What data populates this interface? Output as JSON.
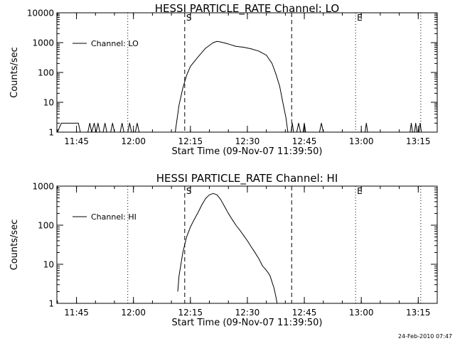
{
  "footer_date": "24-Feb-2010 07:47",
  "chart_data": [
    {
      "type": "line",
      "title": "HESSI PARTICLE_RATE Channel: LO",
      "xlabel": "Start Time (09-Nov-07 11:39:50)",
      "ylabel": "Counts/sec",
      "yscale": "log",
      "xlim": [
        "11:39:50",
        "13:20:00"
      ],
      "ylim": [
        1,
        10000
      ],
      "xticks": [
        "11:45",
        "12:00",
        "12:15",
        "12:30",
        "12:45",
        "13:00",
        "13:15"
      ],
      "yticks": [
        {
          "value": 1,
          "label": "1"
        },
        {
          "value": 10,
          "label": "10"
        },
        {
          "value": 100,
          "label": "100"
        },
        {
          "value": 1000,
          "label": "1000"
        },
        {
          "value": 10000,
          "label": "10000"
        }
      ],
      "legend": {
        "position": "top-left",
        "label": "Channel: LO"
      },
      "markers": [
        {
          "time": "11:58:30",
          "style": "dotted",
          "label": ""
        },
        {
          "time": "12:13:30",
          "style": "dashed",
          "label": "S"
        },
        {
          "time": "12:41:40",
          "style": "dashed",
          "label": ""
        },
        {
          "time": "12:58:30",
          "style": "dotted",
          "label": "E"
        },
        {
          "time": "13:15:40",
          "style": "dotted",
          "label": ""
        }
      ],
      "series": [
        {
          "values": [
            [
              "11:40:00",
              1
            ],
            [
              "11:41:00",
              2
            ],
            [
              "11:43:00",
              2
            ],
            [
              "11:45:30",
              2
            ],
            [
              "11:46:00",
              1
            ],
            [
              "11:48:00",
              1
            ],
            [
              "11:48:30",
              2
            ],
            [
              "11:49:00",
              1
            ],
            [
              "11:49:40",
              2
            ],
            [
              "11:50:10",
              1
            ],
            [
              "11:50:40",
              2
            ],
            [
              "11:51:10",
              1
            ],
            [
              "11:52:00",
              1
            ],
            [
              "11:52:30",
              2
            ],
            [
              "11:53:00",
              1
            ],
            [
              "11:54:00",
              1
            ],
            [
              "11:54:30",
              2
            ],
            [
              "11:55:00",
              1
            ],
            [
              "11:56:30",
              1
            ],
            [
              "11:57:00",
              2
            ],
            [
              "11:57:30",
              1
            ],
            [
              "11:58:30",
              1
            ],
            [
              "11:59:00",
              2
            ],
            [
              "11:59:30",
              1
            ],
            [
              "12:00:30",
              1
            ],
            [
              "12:01:00",
              2
            ],
            [
              "12:01:30",
              1
            ],
            [
              "12:11:00",
              1
            ],
            [
              "12:12:00",
              8
            ],
            [
              "12:13:00",
              30
            ],
            [
              "12:14:00",
              80
            ],
            [
              "12:15:00",
              160
            ],
            [
              "12:17:00",
              330
            ],
            [
              "12:19:00",
              650
            ],
            [
              "12:21:00",
              1000
            ],
            [
              "12:22:00",
              1100
            ],
            [
              "12:23:00",
              1050
            ],
            [
              "12:25:00",
              900
            ],
            [
              "12:27:00",
              750
            ],
            [
              "12:29:00",
              700
            ],
            [
              "12:31:00",
              620
            ],
            [
              "12:33:00",
              520
            ],
            [
              "12:35:00",
              380
            ],
            [
              "12:36:30",
              200
            ],
            [
              "12:37:30",
              90
            ],
            [
              "12:38:30",
              35
            ],
            [
              "12:39:20",
              10
            ],
            [
              "12:40:10",
              3
            ],
            [
              "12:40:40",
              1
            ],
            [
              "12:41:30",
              1
            ],
            [
              "12:41:50",
              2
            ],
            [
              "12:42:10",
              1
            ],
            [
              "12:43:00",
              1
            ],
            [
              "12:43:30",
              2
            ],
            [
              "12:44:00",
              1
            ],
            [
              "12:44:40",
              1
            ],
            [
              "12:45:00",
              2
            ],
            [
              "12:45:20",
              1
            ],
            [
              "12:49:00",
              1
            ],
            [
              "12:49:30",
              2
            ],
            [
              "12:50:00",
              1
            ],
            [
              "13:01:00",
              1
            ],
            [
              "13:01:20",
              2
            ],
            [
              "13:01:40",
              1
            ],
            [
              "13:12:50",
              1
            ],
            [
              "13:13:10",
              2
            ],
            [
              "13:13:30",
              1
            ],
            [
              "13:14:00",
              1
            ],
            [
              "13:14:20",
              2
            ],
            [
              "13:14:40",
              1
            ],
            [
              "13:15:10",
              1
            ],
            [
              "13:15:30",
              2
            ],
            [
              "13:15:50",
              1
            ]
          ]
        }
      ]
    },
    {
      "type": "line",
      "title": "HESSI PARTICLE_RATE Channel: HI",
      "xlabel": "Start Time (09-Nov-07 11:39:50)",
      "ylabel": "Counts/sec",
      "yscale": "log",
      "xlim": [
        "11:39:50",
        "13:20:00"
      ],
      "ylim": [
        1,
        1000
      ],
      "xticks": [
        "11:45",
        "12:00",
        "12:15",
        "12:30",
        "12:45",
        "13:00",
        "13:15"
      ],
      "yticks": [
        {
          "value": 1,
          "label": "1"
        },
        {
          "value": 10,
          "label": "10"
        },
        {
          "value": 100,
          "label": "100"
        },
        {
          "value": 1000,
          "label": "1000"
        }
      ],
      "legend": {
        "position": "top-left",
        "label": "Channel: HI"
      },
      "markers": [
        {
          "time": "11:58:30",
          "style": "dotted",
          "label": ""
        },
        {
          "time": "12:13:30",
          "style": "dashed",
          "label": "S"
        },
        {
          "time": "12:41:40",
          "style": "dashed",
          "label": ""
        },
        {
          "time": "12:58:30",
          "style": "dotted",
          "label": "E"
        },
        {
          "time": "13:15:40",
          "style": "dotted",
          "label": ""
        }
      ],
      "series": [
        {
          "values": [
            [
              "12:11:40",
              2
            ],
            [
              "12:12:00",
              5
            ],
            [
              "12:13:00",
              20
            ],
            [
              "12:14:00",
              50
            ],
            [
              "12:15:00",
              90
            ],
            [
              "12:16:00",
              140
            ],
            [
              "12:17:00",
              210
            ],
            [
              "12:18:00",
              330
            ],
            [
              "12:19:00",
              480
            ],
            [
              "12:20:00",
              600
            ],
            [
              "12:21:00",
              650
            ],
            [
              "12:22:00",
              600
            ],
            [
              "12:23:00",
              450
            ],
            [
              "12:24:00",
              300
            ],
            [
              "12:25:00",
              200
            ],
            [
              "12:26:00",
              140
            ],
            [
              "12:27:00",
              100
            ],
            [
              "12:28:00",
              75
            ],
            [
              "12:29:00",
              55
            ],
            [
              "12:30:00",
              40
            ],
            [
              "12:31:00",
              28
            ],
            [
              "12:32:00",
              20
            ],
            [
              "12:33:00",
              14
            ],
            [
              "12:34:00",
              9
            ],
            [
              "12:34:30",
              8
            ],
            [
              "12:35:00",
              7
            ],
            [
              "12:35:30",
              6
            ],
            [
              "12:36:00",
              5
            ],
            [
              "12:36:30",
              3.5
            ],
            [
              "12:37:00",
              2.5
            ],
            [
              "12:37:30",
              1.5
            ],
            [
              "12:37:50",
              1
            ]
          ]
        }
      ]
    }
  ]
}
